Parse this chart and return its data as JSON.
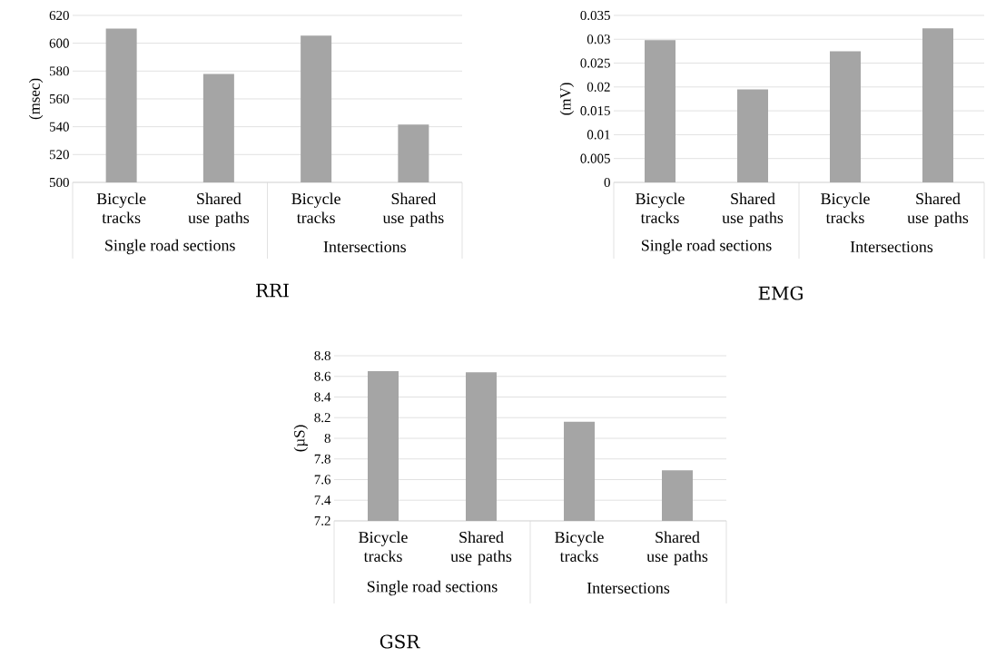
{
  "chart_data": [
    {
      "type": "bar",
      "title": "RRI",
      "ylabel": "(msec)",
      "categories": [
        "Bicycle tracks",
        "Shared use paths",
        "Bicycle tracks",
        "Shared use paths"
      ],
      "values": [
        610.5,
        578,
        605.5,
        541.5
      ],
      "color": "#a5a5a5",
      "ylim": [
        500,
        620
      ],
      "yticks": [
        500,
        520,
        540,
        560,
        580,
        600,
        620
      ],
      "grid": "y",
      "annotations": [
        "Single road sections",
        "Intersections"
      ]
    },
    {
      "type": "bar",
      "title": "EMG",
      "ylabel": "(mV)",
      "categories": [
        "Bicycle tracks",
        "Shared use paths",
        "Bicycle tracks",
        "Shared use paths"
      ],
      "values": [
        0.0298,
        0.0195,
        0.0275,
        0.0323
      ],
      "color": "#a5a5a5",
      "ylim": [
        0,
        0.035
      ],
      "yticks": [
        0,
        0.005,
        0.01,
        0.015,
        0.02,
        0.025,
        0.03,
        0.035
      ],
      "grid": "y",
      "annotations": [
        "Single road sections",
        "Intersections"
      ]
    },
    {
      "type": "bar",
      "title": "GSR",
      "ylabel": "(µS)",
      "categories": [
        "Bicycle tracks",
        "Shared use paths",
        "Bicycle tracks",
        "Shared use paths"
      ],
      "values": [
        8.65,
        8.64,
        8.16,
        7.69
      ],
      "color": "#a5a5a5",
      "ylim": [
        7.2,
        8.8
      ],
      "yticks": [
        7.2,
        7.4,
        7.6,
        7.8,
        8,
        8.2,
        8.4,
        8.6,
        8.8
      ],
      "grid": "y",
      "annotations": [
        "Single road sections",
        "Intersections"
      ]
    }
  ]
}
